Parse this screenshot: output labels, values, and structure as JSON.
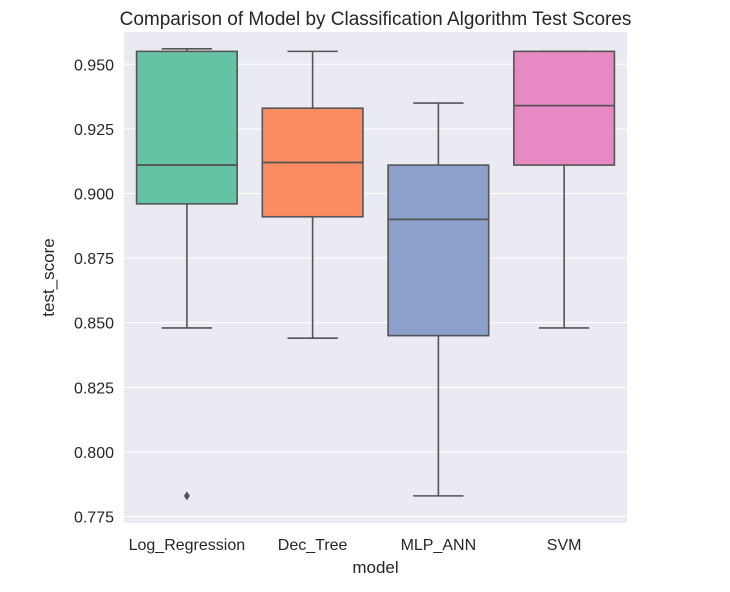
{
  "chart_data": {
    "type": "box",
    "title": "Comparison of Model by Classification Algorithm Test Scores",
    "xlabel": "model",
    "ylabel": "test_score",
    "ylim": [
      0.7725,
      0.9625
    ],
    "yticks": [
      0.775,
      0.8,
      0.825,
      0.85,
      0.875,
      0.9,
      0.925,
      0.95
    ],
    "ytick_labels": [
      "0.775",
      "0.800",
      "0.825",
      "0.850",
      "0.875",
      "0.900",
      "0.925",
      "0.950"
    ],
    "grid": true,
    "categories": [
      "Log_Regression",
      "Dec_Tree",
      "MLP_ANN",
      "SVM"
    ],
    "series": [
      {
        "category": "Log_Regression",
        "whisker_low": 0.848,
        "q1": 0.896,
        "median": 0.911,
        "q3": 0.955,
        "whisker_high": 0.956,
        "outliers": [
          0.783
        ],
        "color": "#66c2a5"
      },
      {
        "category": "Dec_Tree",
        "whisker_low": 0.844,
        "q1": 0.891,
        "median": 0.912,
        "q3": 0.933,
        "whisker_high": 0.955,
        "outliers": [],
        "color": "#fc8d62"
      },
      {
        "category": "MLP_ANN",
        "whisker_low": 0.783,
        "q1": 0.845,
        "median": 0.89,
        "q3": 0.911,
        "whisker_high": 0.935,
        "outliers": [],
        "color": "#8da0cb"
      },
      {
        "category": "SVM",
        "whisker_low": 0.848,
        "q1": 0.911,
        "median": 0.934,
        "q3": 0.955,
        "whisker_high": 0.955,
        "outliers": [],
        "color": "#e78ac3"
      }
    ],
    "colors": {
      "plot_background": "#eaeaf2",
      "gridline": "#ffffff",
      "line": "#555555"
    }
  }
}
